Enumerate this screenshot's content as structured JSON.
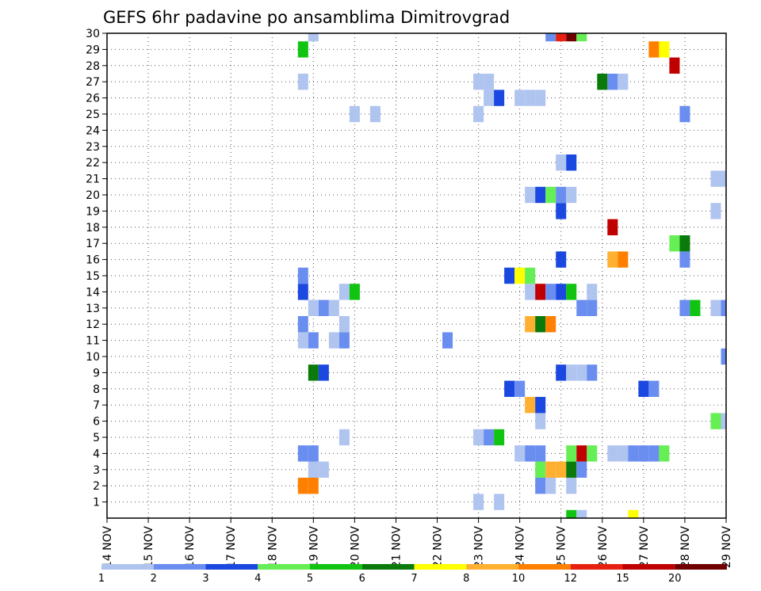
{
  "chart_data": {
    "type": "heatmap",
    "title": "GEFS 6hr padavine po ansamblima Dimitrovgrad",
    "x_tick_labels": [
      "14 NOV",
      "15 NOV",
      "16 NOV",
      "17 NOV",
      "18 NOV",
      "19 NOV",
      "20 NOV",
      "21 NOV",
      "22 NOV",
      "23 NOV",
      "24 NOV",
      "25 NOV",
      "26 NOV",
      "27 NOV",
      "28 NOV",
      "29 NOV"
    ],
    "y_tick_labels": [
      "1",
      "2",
      "3",
      "4",
      "5",
      "6",
      "7",
      "8",
      "9",
      "10",
      "11",
      "12",
      "13",
      "14",
      "15",
      "16",
      "17",
      "18",
      "19",
      "20",
      "21",
      "22",
      "23",
      "24",
      "25",
      "26",
      "27",
      "28",
      "29",
      "30"
    ],
    "x_range_steps": [
      0,
      60
    ],
    "steps_per_day": 4,
    "y_range": [
      0,
      30
    ],
    "grid": "dotted",
    "colorbar": {
      "labels": [
        "1",
        "2",
        "3",
        "4",
        "5",
        "6",
        "7",
        "8",
        "10",
        "12",
        "15",
        "20"
      ],
      "colors": [
        "#b0c4f0",
        "#6a8ef0",
        "#1a48e0",
        "#66ee55",
        "#11c411",
        "#0a7a0a",
        "#ffff00",
        "#ffb030",
        "#ff8000",
        "#e82010",
        "#c00000",
        "#700000"
      ]
    },
    "cells": [
      {
        "t": 45,
        "m": 0,
        "c": 4
      },
      {
        "t": 46,
        "m": 0,
        "c": 0
      },
      {
        "t": 51,
        "m": 0,
        "c": 6
      },
      {
        "t": 36,
        "m": 1,
        "c": 0
      },
      {
        "t": 38,
        "m": 1,
        "c": 0
      },
      {
        "t": 19,
        "m": 2,
        "c": 8
      },
      {
        "t": 20,
        "m": 2,
        "c": 8
      },
      {
        "t": 42,
        "m": 2,
        "c": 1
      },
      {
        "t": 43,
        "m": 2,
        "c": 0
      },
      {
        "t": 45,
        "m": 2,
        "c": 0
      },
      {
        "t": 20,
        "m": 3,
        "c": 0
      },
      {
        "t": 21,
        "m": 3,
        "c": 0
      },
      {
        "t": 42,
        "m": 3,
        "c": 3
      },
      {
        "t": 43,
        "m": 3,
        "c": 7
      },
      {
        "t": 44,
        "m": 3,
        "c": 7
      },
      {
        "t": 45,
        "m": 3,
        "c": 5
      },
      {
        "t": 46,
        "m": 3,
        "c": 1
      },
      {
        "t": 19,
        "m": 4,
        "c": 1
      },
      {
        "t": 20,
        "m": 4,
        "c": 1
      },
      {
        "t": 40,
        "m": 4,
        "c": 0
      },
      {
        "t": 41,
        "m": 4,
        "c": 1
      },
      {
        "t": 42,
        "m": 4,
        "c": 1
      },
      {
        "t": 45,
        "m": 4,
        "c": 3
      },
      {
        "t": 46,
        "m": 4,
        "c": 10
      },
      {
        "t": 47,
        "m": 4,
        "c": 3
      },
      {
        "t": 49,
        "m": 4,
        "c": 0
      },
      {
        "t": 50,
        "m": 4,
        "c": 0
      },
      {
        "t": 51,
        "m": 4,
        "c": 1
      },
      {
        "t": 52,
        "m": 4,
        "c": 1
      },
      {
        "t": 53,
        "m": 4,
        "c": 1
      },
      {
        "t": 54,
        "m": 4,
        "c": 3
      },
      {
        "t": 23,
        "m": 5,
        "c": 0
      },
      {
        "t": 36,
        "m": 5,
        "c": 0
      },
      {
        "t": 37,
        "m": 5,
        "c": 1
      },
      {
        "t": 38,
        "m": 5,
        "c": 4
      },
      {
        "t": 42,
        "m": 6,
        "c": 0
      },
      {
        "t": 59,
        "m": 6,
        "c": 3
      },
      {
        "t": 60,
        "m": 6,
        "c": 0
      },
      {
        "t": 41,
        "m": 7,
        "c": 7
      },
      {
        "t": 42,
        "m": 7,
        "c": 2
      },
      {
        "t": 39,
        "m": 8,
        "c": 2
      },
      {
        "t": 40,
        "m": 8,
        "c": 1
      },
      {
        "t": 52,
        "m": 8,
        "c": 2
      },
      {
        "t": 53,
        "m": 8,
        "c": 1
      },
      {
        "t": 20,
        "m": 9,
        "c": 5
      },
      {
        "t": 21,
        "m": 9,
        "c": 2
      },
      {
        "t": 44,
        "m": 9,
        "c": 2
      },
      {
        "t": 45,
        "m": 9,
        "c": 0
      },
      {
        "t": 46,
        "m": 9,
        "c": 0
      },
      {
        "t": 47,
        "m": 9,
        "c": 1
      },
      {
        "t": 60,
        "m": 10,
        "c": 1
      },
      {
        "t": 19,
        "m": 11,
        "c": 0
      },
      {
        "t": 20,
        "m": 11,
        "c": 1
      },
      {
        "t": 22,
        "m": 11,
        "c": 0
      },
      {
        "t": 23,
        "m": 11,
        "c": 1
      },
      {
        "t": 33,
        "m": 11,
        "c": 1
      },
      {
        "t": 19,
        "m": 12,
        "c": 1
      },
      {
        "t": 23,
        "m": 12,
        "c": 0
      },
      {
        "t": 41,
        "m": 12,
        "c": 7
      },
      {
        "t": 42,
        "m": 12,
        "c": 5
      },
      {
        "t": 43,
        "m": 12,
        "c": 8
      },
      {
        "t": 20,
        "m": 13,
        "c": 0
      },
      {
        "t": 21,
        "m": 13,
        "c": 1
      },
      {
        "t": 22,
        "m": 13,
        "c": 0
      },
      {
        "t": 46,
        "m": 13,
        "c": 1
      },
      {
        "t": 47,
        "m": 13,
        "c": 1
      },
      {
        "t": 56,
        "m": 13,
        "c": 1
      },
      {
        "t": 57,
        "m": 13,
        "c": 4
      },
      {
        "t": 59,
        "m": 13,
        "c": 0
      },
      {
        "t": 60,
        "m": 13,
        "c": 1
      },
      {
        "t": 19,
        "m": 14,
        "c": 2
      },
      {
        "t": 23,
        "m": 14,
        "c": 0
      },
      {
        "t": 24,
        "m": 14,
        "c": 4
      },
      {
        "t": 41,
        "m": 14,
        "c": 0
      },
      {
        "t": 42,
        "m": 14,
        "c": 10
      },
      {
        "t": 43,
        "m": 14,
        "c": 1
      },
      {
        "t": 44,
        "m": 14,
        "c": 2
      },
      {
        "t": 45,
        "m": 14,
        "c": 4
      },
      {
        "t": 47,
        "m": 14,
        "c": 0
      },
      {
        "t": 19,
        "m": 15,
        "c": 1
      },
      {
        "t": 39,
        "m": 15,
        "c": 2
      },
      {
        "t": 40,
        "m": 15,
        "c": 6
      },
      {
        "t": 41,
        "m": 15,
        "c": 3
      },
      {
        "t": 44,
        "m": 16,
        "c": 2
      },
      {
        "t": 49,
        "m": 16,
        "c": 7
      },
      {
        "t": 50,
        "m": 16,
        "c": 8
      },
      {
        "t": 56,
        "m": 16,
        "c": 1
      },
      {
        "t": 55,
        "m": 17,
        "c": 3
      },
      {
        "t": 56,
        "m": 17,
        "c": 5
      },
      {
        "t": 49,
        "m": 18,
        "c": 10
      },
      {
        "t": 44,
        "m": 19,
        "c": 2
      },
      {
        "t": 59,
        "m": 19,
        "c": 0
      },
      {
        "t": 41,
        "m": 20,
        "c": 0
      },
      {
        "t": 42,
        "m": 20,
        "c": 2
      },
      {
        "t": 43,
        "m": 20,
        "c": 3
      },
      {
        "t": 44,
        "m": 20,
        "c": 1
      },
      {
        "t": 45,
        "m": 20,
        "c": 0
      },
      {
        "t": 59,
        "m": 21,
        "c": 0
      },
      {
        "t": 60,
        "m": 21,
        "c": 0
      },
      {
        "t": 44,
        "m": 22,
        "c": 0
      },
      {
        "t": 45,
        "m": 22,
        "c": 2
      },
      {
        "t": 24,
        "m": 25,
        "c": 0
      },
      {
        "t": 26,
        "m": 25,
        "c": 0
      },
      {
        "t": 36,
        "m": 25,
        "c": 0
      },
      {
        "t": 56,
        "m": 25,
        "c": 1
      },
      {
        "t": 37,
        "m": 26,
        "c": 0
      },
      {
        "t": 38,
        "m": 26,
        "c": 2
      },
      {
        "t": 40,
        "m": 26,
        "c": 0
      },
      {
        "t": 41,
        "m": 26,
        "c": 0
      },
      {
        "t": 42,
        "m": 26,
        "c": 0
      },
      {
        "t": 19,
        "m": 27,
        "c": 0
      },
      {
        "t": 36,
        "m": 27,
        "c": 0
      },
      {
        "t": 37,
        "m": 27,
        "c": 0
      },
      {
        "t": 48,
        "m": 27,
        "c": 5
      },
      {
        "t": 49,
        "m": 27,
        "c": 1
      },
      {
        "t": 50,
        "m": 27,
        "c": 0
      },
      {
        "t": 55,
        "m": 28,
        "c": 10
      },
      {
        "t": 19,
        "m": 29,
        "c": 4
      },
      {
        "t": 53,
        "m": 29,
        "c": 8
      },
      {
        "t": 54,
        "m": 29,
        "c": 6
      },
      {
        "t": 20,
        "m": 30,
        "c": 0
      },
      {
        "t": 43,
        "m": 30,
        "c": 1
      },
      {
        "t": 44,
        "m": 30,
        "c": 9
      },
      {
        "t": 45,
        "m": 30,
        "c": 11
      },
      {
        "t": 46,
        "m": 30,
        "c": 3
      }
    ]
  }
}
